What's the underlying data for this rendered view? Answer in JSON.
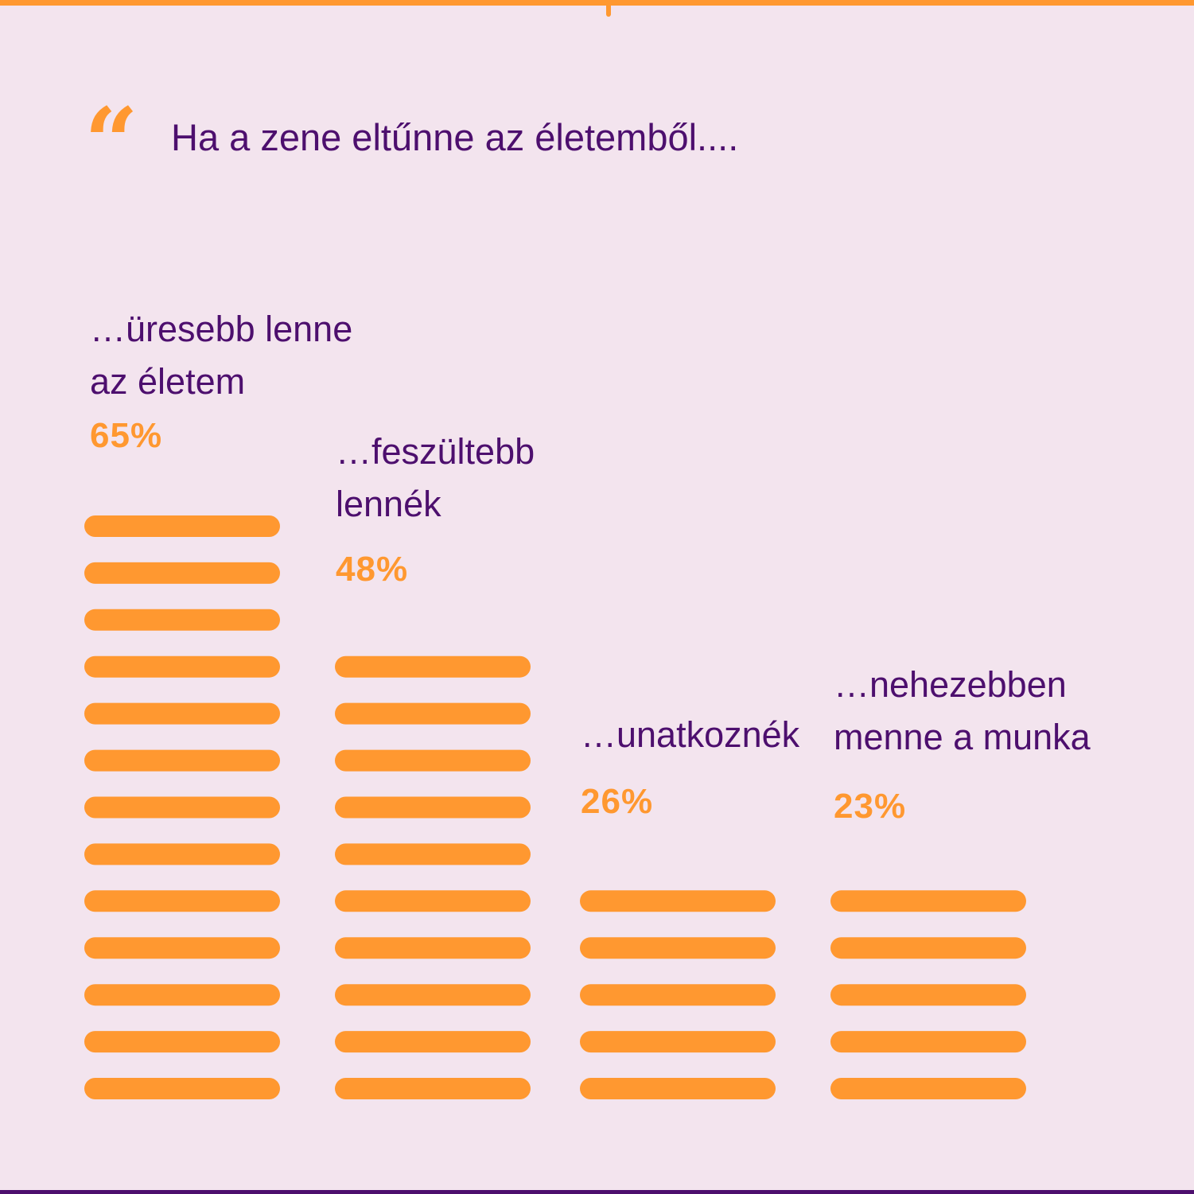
{
  "headline": {
    "quote_glyph": "“",
    "text": "Ha a zene eltűnne az életemből...."
  },
  "colors": {
    "background": "#f3e4ee",
    "accent": "#ff9830",
    "text": "#4d0f6e"
  },
  "chart_data": {
    "type": "bar",
    "title": "Ha a zene eltűnne az életemből....",
    "categories": [
      "…üresebb lenne az életem",
      "…feszültebb lennék",
      "…unatkoznék",
      "…nehezebben menne a munka"
    ],
    "values": [
      65,
      48,
      26,
      23
    ],
    "value_labels": [
      "65%",
      "48%",
      "26%",
      "23%"
    ],
    "unit": "%",
    "stripe_counts": [
      13,
      10,
      5,
      5
    ],
    "grid": false,
    "legend": "none"
  },
  "columns": [
    {
      "label": "…üresebb lenne\naz életem",
      "pct": "65%"
    },
    {
      "label": "…feszültebb\nlennék",
      "pct": "48%"
    },
    {
      "label": "…unatkoznék",
      "pct": "26%"
    },
    {
      "label": "…nehezebben\nmenne a munka",
      "pct": "23%"
    }
  ]
}
